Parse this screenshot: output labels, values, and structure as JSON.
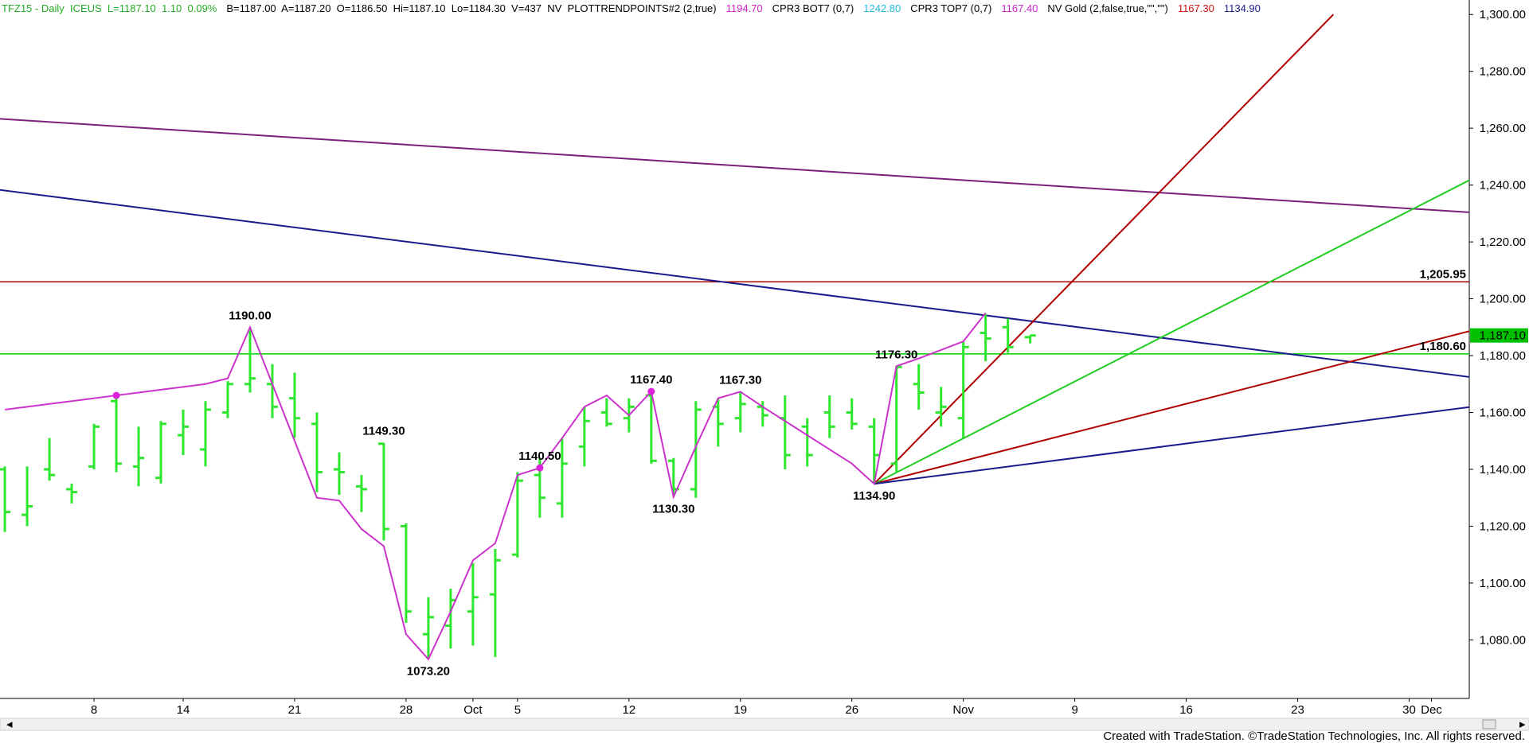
{
  "chart_data": {
    "type": "ohlc",
    "header": [
      {
        "text": "TFZ15 - Daily  ICEUS  L=1187.10  1.10  0.09%",
        "color": "#22aa22"
      },
      {
        "text": "B=1187.00  A=1187.20  O=1186.50  Hi=1187.10  Lo=1184.30  V=437  NV  PLOTTRENDPOINTS#2 (2,true)",
        "color": "#000000"
      },
      {
        "text": "1194.70",
        "color": "#cc22cc"
      },
      {
        "text": "CPR3 BOT7 (0,7)",
        "color": "#000000"
      },
      {
        "text": "1242.80",
        "color": "#22bbdd"
      },
      {
        "text": "CPR3 TOP7 (0,7)",
        "color": "#000000"
      },
      {
        "text": "1167.40",
        "color": "#cc22cc"
      },
      {
        "text": "NV Gold (2,false,true,\"\",\"\")",
        "color": "#000000"
      },
      {
        "text": "1167.30",
        "color": "#cc1111"
      },
      {
        "text": "1134.90",
        "color": "#1a1a8c"
      }
    ],
    "footer": "Created with TradeStation. ©TradeStation Technologies, Inc. All rights reserved.",
    "categories": [
      null,
      null,
      null,
      null,
      "8",
      null,
      null,
      null,
      "14",
      null,
      null,
      null,
      null,
      "21",
      null,
      null,
      null,
      null,
      "28",
      null,
      null,
      "Oct",
      null,
      "5",
      null,
      null,
      null,
      null,
      "12",
      null,
      null,
      null,
      null,
      "19",
      null,
      null,
      null,
      null,
      "26",
      null,
      null,
      null,
      null,
      "Nov",
      null,
      null,
      null,
      null,
      "9",
      null,
      null,
      null,
      null,
      "16",
      null,
      null,
      null,
      null,
      "23",
      null,
      null,
      null,
      null,
      "30",
      "Dec",
      null
    ],
    "open": [
      1140,
      1124,
      1140,
      1133,
      1141,
      1164,
      1141,
      1137,
      1152,
      1147,
      1160,
      1170,
      1170,
      1165,
      1156,
      1140,
      1134,
      1149,
      1120,
      1082,
      1085,
      1090,
      1096,
      1110,
      1138,
      1128,
      1148,
      1160,
      1158,
      1166,
      1143,
      1133,
      1162,
      1158,
      1162,
      1158,
      1155,
      1160,
      1160,
      1155,
      1142,
      1170,
      1160,
      1158,
      1188,
      1190,
      1186.5,
      null,
      null,
      null,
      null,
      null,
      null,
      null,
      null,
      null,
      null,
      null,
      null,
      null,
      null,
      null,
      null,
      null,
      null,
      null
    ],
    "high": [
      1141,
      1141,
      1151,
      1135,
      1156,
      1166,
      1155,
      1157,
      1161,
      1164,
      1171,
      1190,
      1177,
      1174,
      1160,
      1146,
      1138,
      1149.3,
      1121,
      1095,
      1098,
      1107,
      1112,
      1139,
      1144,
      1151,
      1162,
      1165,
      1165,
      1167.4,
      1144,
      1164,
      1165,
      1167.3,
      1164,
      1166,
      1158,
      1166,
      1165,
      1158,
      1176.3,
      1177,
      1169,
      1185,
      1194.7,
      1193,
      1187.1,
      null,
      null,
      null,
      null,
      null,
      null,
      null,
      null,
      null,
      null,
      null,
      null,
      null,
      null,
      null,
      null,
      null,
      null,
      null
    ],
    "low": [
      1118,
      1120,
      1136,
      1128,
      1140,
      1139,
      1134,
      1135,
      1145,
      1141,
      1158,
      1167,
      1158,
      1151,
      1132,
      1131,
      1125,
      1115,
      1086,
      1073.2,
      1077,
      1078,
      1074,
      1109,
      1123,
      1123,
      1141,
      1155,
      1153,
      1142,
      1130.3,
      1130,
      1148,
      1153,
      1155,
      1140,
      1141,
      1151,
      1154,
      1134.9,
      1139,
      1161,
      1155,
      1151,
      1178,
      1181,
      1184.3,
      null,
      null,
      null,
      null,
      null,
      null,
      null,
      null,
      null,
      null,
      null,
      null,
      null,
      null,
      null,
      null,
      null,
      null,
      null
    ],
    "close": [
      1125,
      1127,
      1138,
      1132,
      1155,
      1142,
      1144,
      1156,
      1155,
      1161,
      1170,
      1172,
      1162,
      1158,
      1139,
      1139,
      1133,
      1119,
      1090,
      1088,
      1094,
      1095,
      1108,
      1136,
      1130,
      1142,
      1157,
      1156,
      1162,
      1143,
      1133,
      1161,
      1156,
      1163,
      1159,
      1145,
      1145,
      1155,
      1156,
      1145,
      1176,
      1167,
      1162,
      1183,
      1186,
      1183,
      1187.1,
      null,
      null,
      null,
      null,
      null,
      null,
      null,
      null,
      null,
      null,
      null,
      null,
      null,
      null,
      null,
      null,
      null,
      null,
      null
    ],
    "color": "#2ee62e",
    "series": [
      {
        "name": "PLOTTRENDPOINTS#2",
        "color": "#cc33cc",
        "values": [
          1161,
          1162,
          1163,
          1164,
          1165,
          1166,
          1167,
          1168,
          1169,
          1170,
          1172,
          1190,
          1170,
          1150,
          1130,
          1129,
          1119,
          1113,
          1082,
          1073.2,
          1090,
          1108,
          1114,
          1138,
          1140.5,
          1151,
          1162,
          1166,
          1159,
          1167.4,
          1130.3,
          1148,
          1165,
          1167.3,
          1162,
          1157,
          1152,
          1147,
          1142,
          1134.9,
          1176.3,
          1179,
          1182,
          1185,
          1195,
          null,
          null,
          null,
          null,
          null,
          null,
          null,
          null,
          null,
          null,
          null,
          null,
          null,
          null,
          null,
          null,
          null,
          null,
          null,
          null,
          null
        ]
      },
      {
        "name": "CPR3",
        "color": "#dd22dd",
        "values": [
          null,
          null,
          null,
          null,
          null,
          1166,
          null,
          null,
          null,
          null,
          null,
          null,
          null,
          null,
          null,
          null,
          null,
          null,
          null,
          null,
          null,
          null,
          null,
          null,
          1140.5,
          null,
          null,
          null,
          null,
          1167.4,
          null,
          null,
          null,
          null,
          null,
          null,
          null,
          null,
          null,
          null,
          null,
          null,
          null,
          null,
          null,
          null,
          null,
          null,
          null,
          null,
          null,
          null,
          null,
          null,
          null,
          null,
          null,
          null,
          null,
          null,
          null,
          null,
          null,
          null,
          null,
          null
        ]
      }
    ],
    "annotations": [
      {
        "text": "1190.00",
        "index": 11,
        "value": 1190,
        "position": "above"
      },
      {
        "text": "1149.30",
        "index": 17,
        "value": 1149.3,
        "position": "above"
      },
      {
        "text": "1073.20",
        "index": 19,
        "value": 1073.2,
        "position": "below"
      },
      {
        "text": "1140.50",
        "index": 24,
        "value": 1140.5,
        "position": "above"
      },
      {
        "text": "1167.40",
        "index": 29,
        "value": 1167.4,
        "position": "above"
      },
      {
        "text": "1130.30",
        "index": 30,
        "value": 1130.3,
        "position": "below"
      },
      {
        "text": "1167.30",
        "index": 33,
        "value": 1167.3,
        "position": "above"
      },
      {
        "text": "1134.90",
        "index": 39,
        "value": 1134.9,
        "position": "below"
      },
      {
        "text": "1176.30",
        "index": 40,
        "value": 1176.3,
        "position": "above"
      }
    ],
    "trend_lines": [
      {
        "color": "#7a1f7a",
        "points": [
          [
            -0.22,
            1263.3
          ],
          [
            65.7,
            1230.4
          ]
        ]
      },
      {
        "color": "#1a1a8c",
        "points": [
          [
            -0.22,
            1238.3
          ],
          [
            65.7,
            1172.5
          ]
        ]
      },
      {
        "color": "#b00000",
        "points": [
          [
            39,
            1134.9
          ],
          [
            59.6,
            1300
          ]
        ]
      },
      {
        "color": "#22cc22",
        "points": [
          [
            39,
            1134.9
          ],
          [
            65.7,
            1241.7
          ]
        ]
      },
      {
        "color": "#b00000",
        "points": [
          [
            39,
            1134.9
          ],
          [
            65.7,
            1188.6
          ]
        ]
      },
      {
        "color": "#1a1a8c",
        "points": [
          [
            39,
            1134.9
          ],
          [
            65.7,
            1161.9
          ]
        ]
      }
    ],
    "levels": [
      {
        "value": 1205.95,
        "label": "1,205.95",
        "color": "#b00000"
      },
      {
        "value": 1180.6,
        "label": "1,180.60",
        "color": "#00d000"
      }
    ],
    "last_price": {
      "value": 1187.1,
      "label": "1,187.10",
      "color": "#00c000"
    },
    "ylim": [
      1059.4,
      1305.1
    ],
    "yticks": [
      {
        "value": 1080,
        "label": "1,080.00"
      },
      {
        "value": 1100,
        "label": "1,100.00"
      },
      {
        "value": 1120,
        "label": "1,120.00"
      },
      {
        "value": 1140,
        "label": "1,140.00"
      },
      {
        "value": 1160,
        "label": "1,160.00"
      },
      {
        "value": 1180,
        "label": "1,180.00"
      },
      {
        "value": 1200,
        "label": "1,200.00"
      },
      {
        "value": 1220,
        "label": "1,220.00"
      },
      {
        "value": 1240,
        "label": "1,240.00"
      },
      {
        "value": 1260,
        "label": "1,260.00"
      },
      {
        "value": 1280,
        "label": "1,280.00"
      },
      {
        "value": 1300,
        "label": "1,300.00"
      }
    ]
  }
}
